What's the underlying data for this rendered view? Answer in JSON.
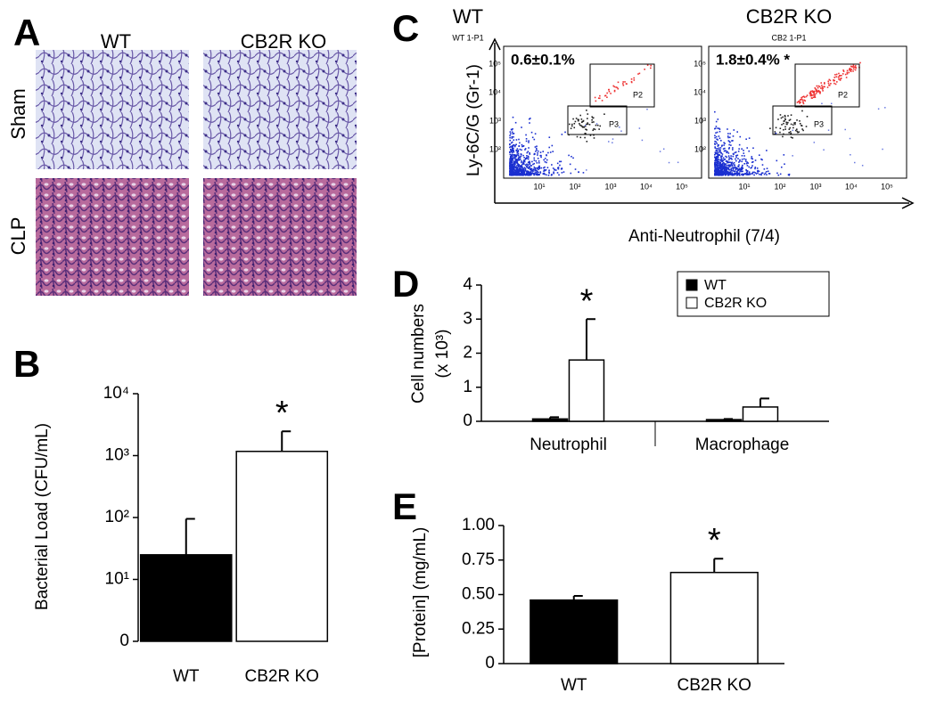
{
  "panels": {
    "A": {
      "panel_label": "A",
      "columns": [
        "WT",
        "CB2R KO"
      ],
      "rows": [
        "Sham",
        "CLP"
      ]
    },
    "C": {
      "panel_label": "C",
      "ylabel": "Ly-6C/G (Gr-1)",
      "xlabel": "Anti-Neutrophil (7/4)",
      "plots": [
        {
          "title": "WT",
          "subtitle": "WT 1-P1",
          "stat": "0.6±0.1%",
          "gates": [
            "P2",
            "P3"
          ]
        },
        {
          "title": "CB2R KO",
          "subtitle": "CB2 1-P1",
          "stat": "1.8±0.4% *",
          "gates": [
            "P2",
            "P3"
          ]
        }
      ],
      "xtick_labels": [
        "10¹",
        "10²",
        "10³",
        "10⁴",
        "10⁵"
      ],
      "ytick_labels": [
        "10²",
        "10³",
        "10⁴",
        "10⁵"
      ]
    }
  },
  "chart_data": [
    {
      "type": "bar",
      "panel_label": "B",
      "ylabel": "Bacterial Load (CFU/mL)",
      "log_scale": true,
      "categories": [
        "WT",
        "CB2R KO"
      ],
      "values": [
        25,
        1170
      ],
      "errors": [
        70,
        1300
      ],
      "colors": [
        "#000000",
        "#ffffff"
      ],
      "ylim": [
        1,
        10000
      ],
      "yticks": [
        {
          "value": 1,
          "label": "0"
        },
        {
          "value": 10,
          "label": "10¹"
        },
        {
          "value": 100,
          "label": "10²"
        },
        {
          "value": 1000,
          "label": "10³"
        },
        {
          "value": 10000,
          "label": "10⁴"
        }
      ],
      "annotations": [
        {
          "text": "*",
          "category": 1
        }
      ]
    },
    {
      "type": "grouped_bar",
      "panel_label": "D",
      "ylabel": [
        "Cell numbers",
        "(x 10³)"
      ],
      "categories": [
        "Neutrophil",
        "Macrophage"
      ],
      "series": [
        {
          "name": "WT",
          "color": "#000000",
          "values": [
            0.07,
            0.05
          ],
          "errors": [
            0.05,
            0.02
          ]
        },
        {
          "name": "CB2R KO",
          "color": "#ffffff",
          "values": [
            1.8,
            0.42
          ],
          "errors": [
            1.2,
            0.25
          ]
        }
      ],
      "ylim": [
        0,
        4
      ],
      "yticks": [
        0,
        1,
        2,
        3,
        4
      ],
      "legend": "upper right",
      "annotations": [
        {
          "text": "*",
          "series": 1,
          "category": 0
        }
      ]
    },
    {
      "type": "bar",
      "panel_label": "E",
      "ylabel": "[Protein] (mg/mL)",
      "categories": [
        "WT",
        "CB2R KO"
      ],
      "values": [
        0.46,
        0.66
      ],
      "errors": [
        0.03,
        0.1
      ],
      "colors": [
        "#000000",
        "#ffffff"
      ],
      "ylim": [
        0,
        1
      ],
      "yticks": [
        0,
        0.25,
        {
          "value": 0.5,
          "label": "0.50"
        },
        0.75,
        {
          "value": 1,
          "label": "1.00"
        }
      ],
      "annotations": [
        {
          "text": "*",
          "category": 1
        }
      ]
    }
  ]
}
